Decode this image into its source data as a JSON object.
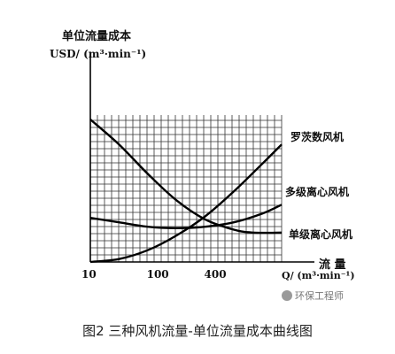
{
  "chart_data": {
    "type": "line",
    "ylabel": "单位流量成本",
    "ylabel_unit": "USD/ (m³·min⁻¹)",
    "xlabel": "流 量",
    "xlabel_unit": "Q/ (m³·min⁻¹)",
    "x_ticks": [
      "10",
      "100",
      "400"
    ],
    "x_tick_positions": [
      0,
      0.35,
      0.66
    ],
    "xlim": [
      0,
      1
    ],
    "ylim": [
      0,
      1
    ],
    "grid": true,
    "series": [
      {
        "name": "罗茨数风机",
        "x": [
          0,
          0.15,
          0.3,
          0.45,
          0.6,
          0.75,
          0.9,
          1.0
        ],
        "y": [
          0.0,
          0.02,
          0.08,
          0.18,
          0.31,
          0.48,
          0.67,
          0.8
        ]
      },
      {
        "name": "多级离心风机",
        "x": [
          0,
          0.15,
          0.3,
          0.45,
          0.6,
          0.75,
          0.9,
          1.0
        ],
        "y": [
          0.3,
          0.27,
          0.24,
          0.23,
          0.24,
          0.27,
          0.33,
          0.39
        ]
      },
      {
        "name": "单级离心风机",
        "x": [
          0,
          0.15,
          0.3,
          0.45,
          0.6,
          0.75,
          0.85,
          1.0
        ],
        "y": [
          0.97,
          0.8,
          0.6,
          0.42,
          0.29,
          0.22,
          0.2,
          0.2
        ]
      }
    ],
    "caption": "图2 三种风机流量-单位流量成本曲线图"
  },
  "watermark": "环保工程师"
}
